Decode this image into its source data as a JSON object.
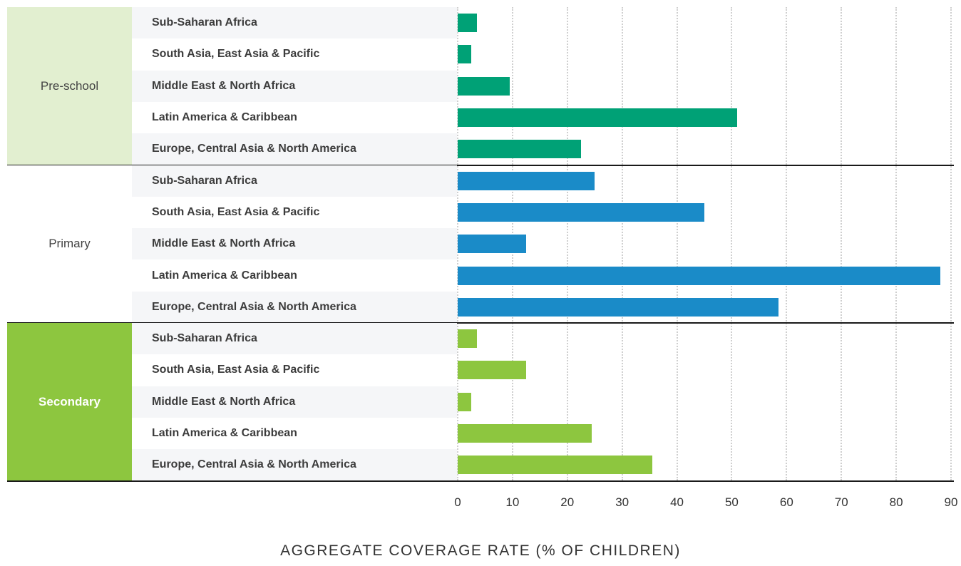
{
  "chart_data": {
    "type": "bar",
    "orientation": "horizontal",
    "xlabel": "AGGREGATE COVERAGE RATE (% OF CHILDREN)",
    "xlim": [
      0,
      90
    ],
    "xticks": [
      "0",
      "10",
      "20",
      "30",
      "40",
      "50",
      "60",
      "70",
      "80",
      "90"
    ],
    "grid": true,
    "groups": [
      {
        "name": "Pre-school",
        "fill": "#e2efd0",
        "text_color": "#444444",
        "bold": false,
        "bar_color": "#00a176",
        "categories": [
          "Sub-Saharan Africa",
          "South Asia, East Asia & Pacific",
          "Middle East & North Africa",
          "Latin America & Caribbean",
          "Europe, Central Asia & North America"
        ],
        "values": [
          3.5,
          2.5,
          9.5,
          51,
          22.5
        ]
      },
      {
        "name": "Primary",
        "fill": "#ffffff",
        "text_color": "#444444",
        "bold": false,
        "bar_color": "#1a8bc8",
        "categories": [
          "Sub-Saharan Africa",
          "South Asia, East Asia & Pacific",
          "Middle East & North Africa",
          "Latin America & Caribbean",
          "Europe, Central Asia & North America"
        ],
        "values": [
          25,
          45,
          12.5,
          88,
          58.5
        ]
      },
      {
        "name": "Secondary",
        "fill": "#8dc63f",
        "text_color": "#ffffff",
        "bold": true,
        "bar_color": "#8dc63f",
        "categories": [
          "Sub-Saharan Africa",
          "South Asia, East Asia & Pacific",
          "Middle East & North Africa",
          "Latin America & Caribbean",
          "Europe, Central Asia & North America"
        ],
        "values": [
          3.5,
          12.5,
          2.5,
          24.5,
          35.5
        ]
      }
    ]
  },
  "colors": {
    "row_alt": "#f5f6f8",
    "separator": "#1a1a1a",
    "grid": "#cfcfcf"
  }
}
